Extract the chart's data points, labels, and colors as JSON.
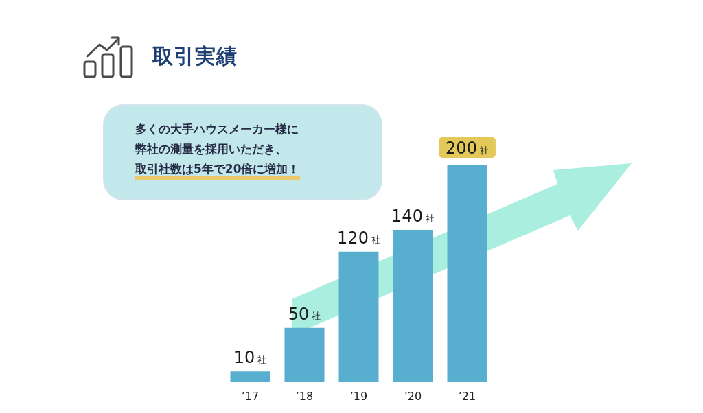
{
  "chart_data": {
    "type": "bar",
    "title": "取引実績",
    "annotations": [
      "多くの大手ハウスメーカー様に",
      "弊社の測量を採用いただき、",
      "取引社数は5年で20倍に増加！"
    ],
    "categories": [
      "’17",
      "’18",
      "’19",
      "’20",
      "’21"
    ],
    "values": [
      10,
      50,
      120,
      140,
      200
    ],
    "value_labels": [
      "10社",
      "50社",
      "120社",
      "140社",
      "200社"
    ],
    "color": "#58aecf",
    "tick_labels": "x"
  }
}
